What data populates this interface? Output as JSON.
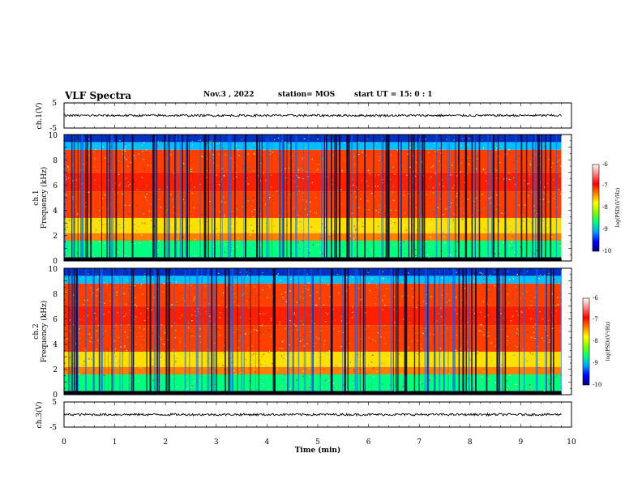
{
  "header": {
    "title": "VLF Spectra",
    "date": "Nov.3 , 2022",
    "station": "station= MOS",
    "start_ut": "start UT = 15: 0 : 1"
  },
  "panels": {
    "ch1_waveform": {
      "ylabel": "ch.1(V)",
      "yticks": [
        "5",
        "-5"
      ]
    },
    "ch1_spectrogram": {
      "ylabel_line1": "ch.1",
      "ylabel_line2": "Frequency (kHz)",
      "yticks": [
        "0",
        "2",
        "4",
        "6",
        "8",
        "10"
      ]
    },
    "ch2_spectrogram": {
      "ylabel_line1": "ch.2",
      "ylabel_line2": "Frequency (kHz)",
      "yticks": [
        "0",
        "2",
        "4",
        "6",
        "8",
        "10"
      ]
    },
    "ch3_waveform": {
      "ylabel": "ch.3(V)",
      "yticks": [
        "5",
        "-5"
      ]
    }
  },
  "colorbar": {
    "label": "log(PSD)(V²/Hz)",
    "ticks": [
      "-6",
      "-7",
      "-8",
      "-9",
      "-10"
    ],
    "colors": [
      "#000080",
      "#0000ff",
      "#00a0ff",
      "#00ff80",
      "#80ff00",
      "#ffff00",
      "#ff8000",
      "#ff0000",
      "#ff8080",
      "#ffffff"
    ]
  },
  "chart_data": [
    {
      "type": "line",
      "title": "",
      "ylabel": "ch.1(V)",
      "xlim": [
        0,
        10
      ],
      "ylim": [
        -5,
        5
      ],
      "series": [
        {
          "x": [
            0,
            9.8
          ],
          "values": [
            0,
            0
          ]
        }
      ]
    },
    {
      "type": "heatmap",
      "xlabel": "",
      "ylabel": "Frequency (kHz)",
      "xlim": [
        0,
        10
      ],
      "ylim": [
        0,
        10
      ],
      "data_extent_min": 9.8,
      "colorbar_range": [
        -10,
        -6
      ],
      "colorbar_label": "log(PSD)(V²/Hz)"
    },
    {
      "type": "heatmap",
      "xlabel": "",
      "ylabel": "Frequency (kHz)",
      "xlim": [
        0,
        10
      ],
      "ylim": [
        0,
        10
      ],
      "data_extent_min": 9.8,
      "colorbar_range": [
        -10,
        -6
      ],
      "colorbar_label": "log(PSD)(V²/Hz)"
    },
    {
      "type": "line",
      "ylabel": "ch.3(V)",
      "xlabel": "Time (min)",
      "xlim": [
        0,
        10
      ],
      "ylim": [
        -5,
        5
      ],
      "xticks": [
        "0",
        "1",
        "2",
        "3",
        "4",
        "5",
        "6",
        "7",
        "8",
        "9",
        "10"
      ],
      "series": [
        {
          "x": [
            0,
            9.8
          ],
          "values": [
            0,
            0
          ]
        }
      ]
    }
  ],
  "xaxis": {
    "label": "Time (min)",
    "ticks": [
      "0",
      "1",
      "2",
      "3",
      "4",
      "5",
      "6",
      "7",
      "8",
      "9",
      "10"
    ]
  }
}
